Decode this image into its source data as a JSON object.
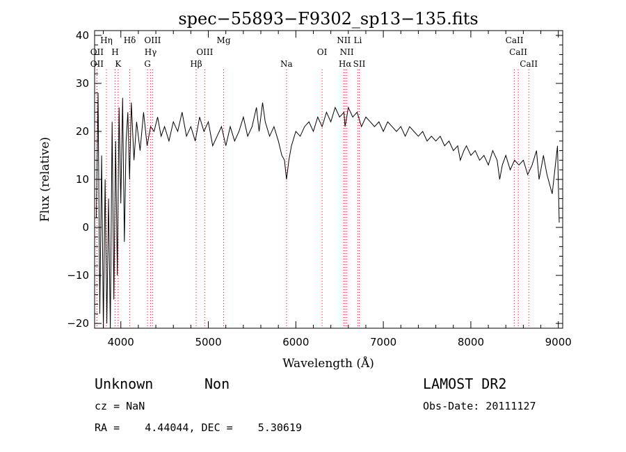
{
  "chart_data": {
    "type": "line",
    "title": "spec−55893−F9302_sp13−135.fits",
    "xlabel": "Wavelength (Å)",
    "ylabel": "Flux (relative)",
    "xlim": [
      3700,
      9050
    ],
    "ylim": [
      -21,
      41
    ],
    "xticks": [
      4000,
      5000,
      6000,
      7000,
      8000,
      9000
    ],
    "yticks": [
      -20,
      -10,
      0,
      10,
      20,
      30,
      40
    ],
    "ytick_labels": [
      "−20",
      "−10",
      "0",
      "10",
      "20",
      "30",
      "40"
    ],
    "grid": false,
    "series": [
      {
        "x": [
          3720,
          3740,
          3760,
          3780,
          3800,
          3820,
          3840,
          3860,
          3880,
          3900,
          3920,
          3940,
          3960,
          3980,
          4000,
          4020,
          4040,
          4060,
          4080,
          4100,
          4120,
          4150,
          4180,
          4220,
          4260,
          4300,
          4340,
          4380,
          4420,
          4460,
          4500,
          4550,
          4600,
          4650,
          4700,
          4750,
          4800,
          4850,
          4900,
          4950,
          5000,
          5050,
          5100,
          5150,
          5200,
          5250,
          5300,
          5350,
          5400,
          5450,
          5500,
          5550,
          5580,
          5620,
          5650,
          5700,
          5750,
          5800,
          5840,
          5870,
          5893,
          5920,
          5950,
          6000,
          6050,
          6100,
          6150,
          6200,
          6250,
          6300,
          6350,
          6400,
          6450,
          6500,
          6550,
          6563,
          6600,
          6650,
          6700,
          6750,
          6800,
          6850,
          6900,
          6950,
          7000,
          7050,
          7100,
          7150,
          7200,
          7250,
          7300,
          7350,
          7400,
          7450,
          7500,
          7550,
          7600,
          7650,
          7700,
          7750,
          7800,
          7850,
          7880,
          7920,
          7950,
          8000,
          8050,
          8100,
          8150,
          8200,
          8250,
          8300,
          8330,
          8360,
          8400,
          8450,
          8500,
          8550,
          8600,
          8650,
          8700,
          8750,
          8780,
          8800,
          8830,
          8850,
          8870,
          8900,
          8930,
          8960,
          8990,
          9010
        ],
        "y": [
          2,
          28,
          -18,
          15,
          -21,
          10,
          -20,
          6,
          -21,
          22,
          -15,
          18,
          -10,
          25,
          5,
          27,
          -3,
          18,
          24,
          10,
          26,
          14,
          22,
          16,
          24,
          17,
          21,
          20,
          23,
          19,
          21,
          18,
          22,
          20,
          24,
          19,
          21,
          18,
          23,
          20,
          22,
          17,
          19,
          21,
          17,
          21,
          18,
          20,
          23,
          19,
          21,
          25,
          20,
          26,
          22,
          19,
          21,
          18,
          15,
          14,
          10,
          14,
          17,
          20,
          19,
          21,
          22,
          20,
          23,
          21,
          24,
          22,
          25,
          23,
          24,
          21,
          25,
          23,
          24,
          21,
          23,
          22,
          21,
          22,
          20,
          22,
          21,
          20,
          21,
          19,
          21,
          20,
          19,
          20,
          18,
          19,
          18,
          19,
          17,
          18,
          16,
          17,
          14,
          16,
          17,
          15,
          16,
          14,
          15,
          13,
          16,
          14,
          10,
          13,
          15,
          12,
          14,
          13,
          14,
          11,
          13,
          16,
          10,
          12,
          15,
          13,
          11,
          9,
          7,
          12,
          17,
          1
        ]
      }
    ],
    "annotations": [
      {
        "label": "OII",
        "x": 3727,
        "row": 1
      },
      {
        "label": "OII",
        "x": 3727,
        "row": 2
      },
      {
        "label": "Hη",
        "x": 3835,
        "row": 0
      },
      {
        "label": "H",
        "x": 3934,
        "row": 1
      },
      {
        "label": "K",
        "x": 3969,
        "row": 2
      },
      {
        "label": "Hδ",
        "x": 4102,
        "row": 0
      },
      {
        "label": "OIII",
        "x": 4363,
        "row": 0
      },
      {
        "label": "Hγ",
        "x": 4340,
        "row": 1
      },
      {
        "label": "G",
        "x": 4305,
        "row": 2
      },
      {
        "label": "Hβ",
        "x": 4861,
        "row": 2
      },
      {
        "label": "OIII",
        "x": 4959,
        "row": 1
      },
      {
        "label": "Mg",
        "x": 5175,
        "row": 0
      },
      {
        "label": "Na",
        "x": 5893,
        "row": 2
      },
      {
        "label": "OI",
        "x": 6300,
        "row": 1
      },
      {
        "label": "NII",
        "x": 6548,
        "row": 0
      },
      {
        "label": "Li",
        "x": 6708,
        "row": 0
      },
      {
        "label": "NII",
        "x": 6583,
        "row": 1
      },
      {
        "label": "Hα",
        "x": 6563,
        "row": 2
      },
      {
        "label": "SII",
        "x": 6725,
        "row": 2
      },
      {
        "label": "CaII",
        "x": 8498,
        "row": 0
      },
      {
        "label": "CaII",
        "x": 8542,
        "row": 1
      },
      {
        "label": "CaII",
        "x": 8662,
        "row": 2
      }
    ],
    "line_color": "#000000",
    "marker_color": "#ff0000"
  },
  "info": {
    "class": "Unknown",
    "subclass": "Non",
    "survey": "LAMOST DR2",
    "cz": "cz = NaN",
    "obs_date": "Obs-Date: 20111127",
    "radec": "RA =    4.44044, DEC =    5.30619"
  }
}
